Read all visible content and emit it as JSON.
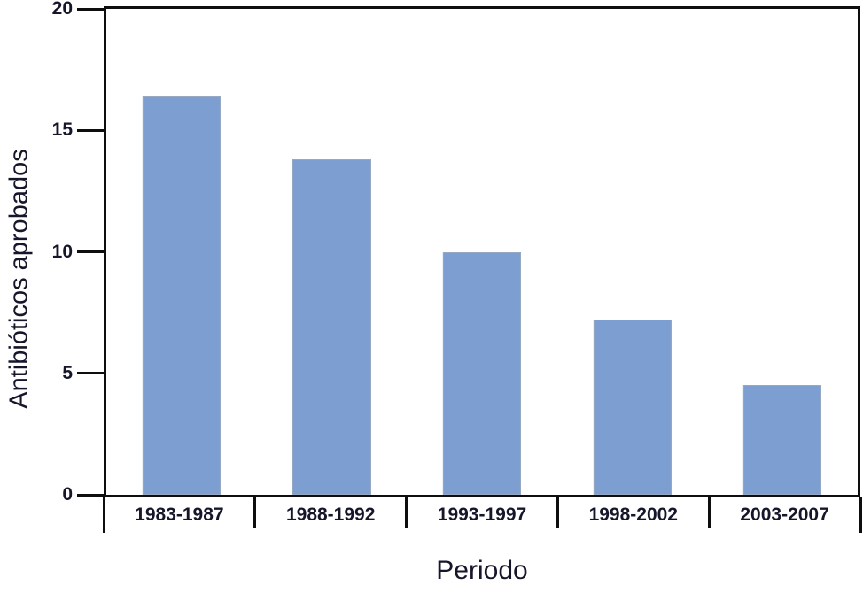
{
  "figure": {
    "background": "#ffffff"
  },
  "chart_data": {
    "type": "bar",
    "title": "",
    "categories": [
      "1983-1987",
      "1988-1992",
      "1993-1997",
      "1998-2002",
      "2003-2007"
    ],
    "values": [
      16.4,
      13.8,
      10.0,
      7.2,
      4.5
    ],
    "xlabel": "Periodo",
    "ylabel": "Antibióticos aprobados",
    "ylim": [
      0,
      20
    ],
    "yticks": [
      0,
      5,
      10,
      15,
      20
    ],
    "grid": false,
    "legend": false,
    "bar_color": "#7d9ed0",
    "bar_border_color": "#97a8c0",
    "axis_color": "#0e0e0e",
    "text_color": "#16162b"
  }
}
